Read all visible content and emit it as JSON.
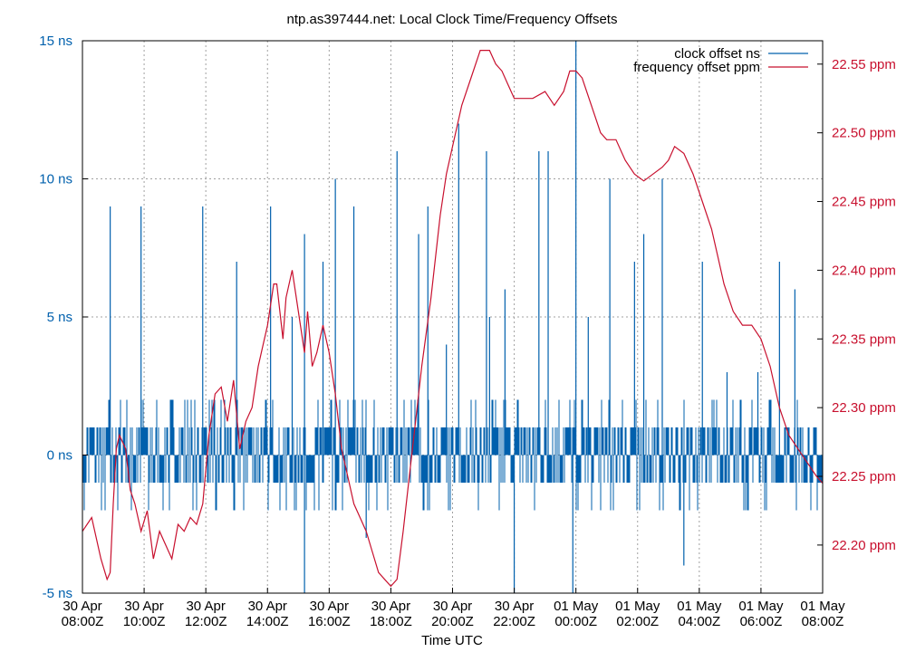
{
  "chart_data": {
    "type": "line",
    "title": "ntp.as397444.net: Local Clock Time/Frequency Offsets",
    "xlabel": "Time UTC",
    "x_ticks": [
      [
        "30 Apr",
        "08:00Z"
      ],
      [
        "30 Apr",
        "10:00Z"
      ],
      [
        "30 Apr",
        "12:00Z"
      ],
      [
        "30 Apr",
        "14:00Z"
      ],
      [
        "30 Apr",
        "16:00Z"
      ],
      [
        "30 Apr",
        "18:00Z"
      ],
      [
        "30 Apr",
        "20:00Z"
      ],
      [
        "30 Apr",
        "22:00Z"
      ],
      [
        "01 May",
        "00:00Z"
      ],
      [
        "01 May",
        "02:00Z"
      ],
      [
        "01 May",
        "04:00Z"
      ],
      [
        "01 May",
        "06:00Z"
      ],
      [
        "01 May",
        "08:00Z"
      ]
    ],
    "x_range_hours": [
      0,
      24
    ],
    "y1_ticks": [
      "15 ns",
      "10 ns",
      "5 ns",
      "0 ns",
      "-5 ns"
    ],
    "y1_tick_values": [
      15,
      10,
      5,
      0,
      -5
    ],
    "y1lim": [
      -5,
      15
    ],
    "y2_ticks": [
      "22.55 ppm",
      "22.50 ppm",
      "22.45 ppm",
      "22.40 ppm",
      "22.35 ppm",
      "22.30 ppm",
      "22.25 ppm",
      "22.20 ppm"
    ],
    "y2_tick_values": [
      22.55,
      22.5,
      22.45,
      22.4,
      22.35,
      22.3,
      22.25,
      22.2
    ],
    "y2lim": [
      22.165,
      22.567
    ],
    "grid": true,
    "legend_position": "top-right",
    "series": [
      {
        "name": "clock offset ns",
        "axis": "y1",
        "color": "#0060ad",
        "style": "impulses",
        "band_typical": [
          -2,
          2
        ],
        "spikes": [
          [
            0.9,
            9
          ],
          [
            1.9,
            9
          ],
          [
            3.9,
            9
          ],
          [
            5,
            7
          ],
          [
            6.1,
            9
          ],
          [
            6.8,
            5
          ],
          [
            7.2,
            -5
          ],
          [
            7.2,
            8
          ],
          [
            7.8,
            7
          ],
          [
            8.2,
            10
          ],
          [
            8.8,
            9
          ],
          [
            9.2,
            -3
          ],
          [
            10.2,
            11
          ],
          [
            10.9,
            8
          ],
          [
            11.2,
            9
          ],
          [
            11.8,
            4
          ],
          [
            12.2,
            12
          ],
          [
            13.1,
            11
          ],
          [
            13.2,
            5
          ],
          [
            13.7,
            6
          ],
          [
            14,
            -5
          ],
          [
            14.8,
            11
          ],
          [
            15.1,
            11
          ],
          [
            15.9,
            -5
          ],
          [
            16,
            15
          ],
          [
            16.4,
            5
          ],
          [
            17.1,
            10
          ],
          [
            17.9,
            7
          ],
          [
            18.2,
            8
          ],
          [
            18.8,
            10
          ],
          [
            19.5,
            -4
          ],
          [
            20.1,
            7
          ],
          [
            20.9,
            3
          ],
          [
            21.9,
            3
          ],
          [
            22.6,
            7
          ],
          [
            23.1,
            6
          ]
        ]
      },
      {
        "name": "frequency offset ppm",
        "axis": "y2",
        "color": "#c8102e",
        "style": "line",
        "x": [
          0,
          0.3,
          0.6,
          0.8,
          0.9,
          1.0,
          1.1,
          1.2,
          1.4,
          1.55,
          1.7,
          1.9,
          2.1,
          2.3,
          2.5,
          2.7,
          2.9,
          3.1,
          3.3,
          3.5,
          3.7,
          3.9,
          4.1,
          4.3,
          4.5,
          4.7,
          4.9,
          5.1,
          5.3,
          5.5,
          5.7,
          5.8,
          6.0,
          6.2,
          6.3,
          6.5,
          6.6,
          6.8,
          7.0,
          7.2,
          7.3,
          7.45,
          7.6,
          7.8,
          8.0,
          8.2,
          8.4,
          8.6,
          8.8,
          9.0,
          9.2,
          9.4,
          9.6,
          9.8,
          10.0,
          10.2,
          10.4,
          10.6,
          10.8,
          11.0,
          11.3,
          11.6,
          11.8,
          12.0,
          12.3,
          12.6,
          12.9,
          13.2,
          13.4,
          13.6,
          13.8,
          14.0,
          14.3,
          14.6,
          15.0,
          15.3,
          15.6,
          15.8,
          16.0,
          16.2,
          16.5,
          16.8,
          17.0,
          17.3,
          17.6,
          17.9,
          18.2,
          18.5,
          18.8,
          19.0,
          19.2,
          19.5,
          19.8,
          20.1,
          20.4,
          20.6,
          20.8,
          21.1,
          21.4,
          21.7,
          22.0,
          22.3,
          22.6,
          22.9,
          23.2,
          23.5,
          23.8,
          24.0
        ],
        "y": [
          22.21,
          22.22,
          22.19,
          22.175,
          22.18,
          22.23,
          22.27,
          22.28,
          22.27,
          22.24,
          22.23,
          22.21,
          22.225,
          22.19,
          22.21,
          22.2,
          22.19,
          22.215,
          22.21,
          22.22,
          22.215,
          22.23,
          22.28,
          22.31,
          22.315,
          22.29,
          22.32,
          22.27,
          22.29,
          22.3,
          22.33,
          22.34,
          22.36,
          22.39,
          22.39,
          22.35,
          22.38,
          22.4,
          22.37,
          22.34,
          22.37,
          22.33,
          22.34,
          22.36,
          22.34,
          22.31,
          22.27,
          22.25,
          22.23,
          22.22,
          22.21,
          22.195,
          22.18,
          22.175,
          22.17,
          22.175,
          22.21,
          22.25,
          22.29,
          22.33,
          22.38,
          22.44,
          22.47,
          22.49,
          22.52,
          22.54,
          22.56,
          22.56,
          22.55,
          22.545,
          22.535,
          22.525,
          22.525,
          22.525,
          22.53,
          22.52,
          22.53,
          22.545,
          22.545,
          22.54,
          22.52,
          22.5,
          22.495,
          22.495,
          22.48,
          22.47,
          22.465,
          22.47,
          22.475,
          22.48,
          22.49,
          22.485,
          22.47,
          22.45,
          22.43,
          22.41,
          22.39,
          22.37,
          22.36,
          22.36,
          22.35,
          22.33,
          22.3,
          22.28,
          22.27,
          22.26,
          22.25,
          22.245
        ]
      }
    ]
  }
}
